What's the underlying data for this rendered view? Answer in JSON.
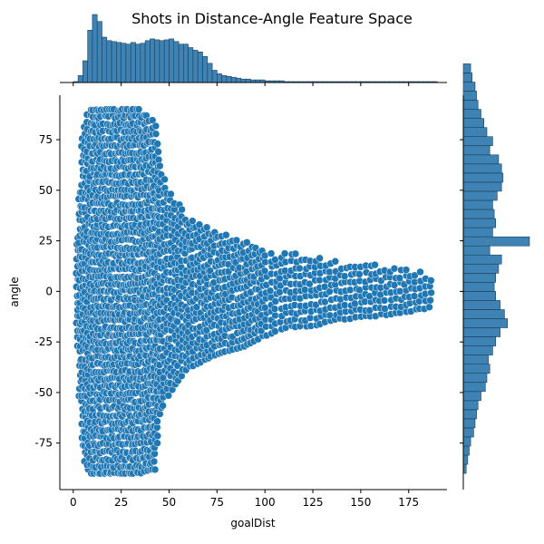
{
  "chart_data": {
    "type": "scatter",
    "title": "Shots in Distance-Angle Feature Space",
    "xlabel": "goalDist",
    "ylabel": "angle",
    "xlim": [
      -7,
      195
    ],
    "ylim": [
      -98,
      97
    ],
    "x_ticks": [
      0,
      25,
      50,
      75,
      100,
      125,
      150,
      175
    ],
    "y_ticks": [
      -75,
      -50,
      -25,
      0,
      25,
      50,
      75
    ],
    "point_color": "#1f77b4",
    "bar_color": "#3e83b3",
    "grid": false,
    "legend": "none",
    "envelope": [
      {
        "x": 2,
        "y_min": -27,
        "y_max": 27
      },
      {
        "x": 5,
        "y_min": -80,
        "y_max": 80
      },
      {
        "x": 8,
        "y_min": -90,
        "y_max": 90
      },
      {
        "x": 35,
        "y_min": -90,
        "y_max": 90
      },
      {
        "x": 43,
        "y_min": -88,
        "y_max": 84
      },
      {
        "x": 45,
        "y_min": -62,
        "y_max": 65
      },
      {
        "x": 50,
        "y_min": -50,
        "y_max": 50
      },
      {
        "x": 60,
        "y_min": -38,
        "y_max": 38
      },
      {
        "x": 75,
        "y_min": -31,
        "y_max": 30
      },
      {
        "x": 90,
        "y_min": -27,
        "y_max": 25
      },
      {
        "x": 100,
        "y_min": -22,
        "y_max": 21
      },
      {
        "x": 110,
        "y_min": -18,
        "y_max": 19
      },
      {
        "x": 125,
        "y_min": -17,
        "y_max": 18
      },
      {
        "x": 140,
        "y_min": -14,
        "y_max": 14
      },
      {
        "x": 160,
        "y_min": -12,
        "y_max": 13
      },
      {
        "x": 175,
        "y_min": -10,
        "y_max": 12
      },
      {
        "x": 188,
        "y_min": -8,
        "y_max": 8
      }
    ],
    "x_marginal": {
      "bin_start": 0,
      "bin_width": 2.5,
      "counts": [
        1,
        8,
        25,
        60,
        78,
        70,
        52,
        48,
        47,
        46,
        45,
        44,
        46,
        44,
        45,
        48,
        50,
        49,
        48,
        49,
        50,
        47,
        44,
        44,
        40,
        37,
        35,
        30,
        22,
        14,
        10,
        8,
        7,
        6,
        5,
        4,
        4,
        3,
        3,
        3,
        2,
        2,
        2,
        2,
        1,
        1,
        1,
        1,
        1,
        1,
        1,
        1,
        1,
        1,
        1,
        1,
        1,
        1,
        1,
        1,
        1,
        1,
        1,
        1,
        1,
        1,
        1,
        1,
        1,
        1,
        1,
        1,
        1,
        1,
        1,
        1
      ]
    },
    "y_marginal": {
      "bin_start": -90,
      "bin_width": 4.5,
      "counts": [
        2,
        3,
        4,
        5,
        7,
        8,
        9,
        10,
        12,
        15,
        16,
        18,
        17,
        20,
        22,
        25,
        30,
        28,
        25,
        22,
        21,
        22,
        24,
        26,
        18,
        45,
        20,
        22,
        21,
        20,
        23,
        26,
        27,
        26,
        24,
        18,
        20,
        16,
        14,
        12,
        10,
        9,
        8,
        6,
        5
      ]
    }
  }
}
